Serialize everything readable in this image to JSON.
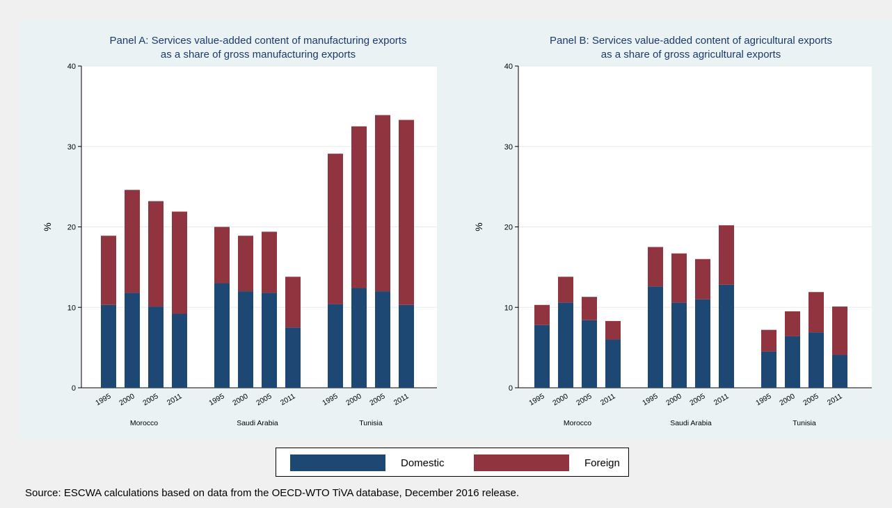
{
  "colors": {
    "domestic": "#1c4873",
    "foreign": "#903540",
    "panel_bg": "#eaf2f3",
    "plot_bg": "#ffffff",
    "title": "#1a3a6c"
  },
  "legend": {
    "items": [
      "Domestic",
      "Foreign"
    ]
  },
  "source": "Source: ESCWA calculations based on data from the OECD-WTO TiVA database, December 2016 release.",
  "chart_data": [
    {
      "type": "bar",
      "stacked": true,
      "title": [
        "Panel A: Services value-added content of manufacturing exports",
        "as a share of gross manufacturing exports"
      ],
      "ylabel": "%",
      "ylim": [
        0,
        40
      ],
      "yticks": [
        0,
        10,
        20,
        30,
        40
      ],
      "grid": true,
      "groups": [
        {
          "name": "Morocco",
          "categories": [
            "1995",
            "2000",
            "2005",
            "2011"
          ],
          "domestic": [
            10.3,
            11.8,
            10.1,
            9.2
          ],
          "foreign": [
            8.6,
            12.8,
            13.1,
            12.7
          ]
        },
        {
          "name": "Saudi Arabia",
          "categories": [
            "1995",
            "2000",
            "2005",
            "2011"
          ],
          "domestic": [
            13.0,
            12.0,
            11.8,
            7.5
          ],
          "foreign": [
            7.0,
            6.9,
            7.6,
            6.3
          ]
        },
        {
          "name": "Tunisia",
          "categories": [
            "1995",
            "2000",
            "2005",
            "2011"
          ],
          "domestic": [
            10.4,
            12.4,
            12.0,
            10.3
          ],
          "foreign": [
            18.7,
            20.1,
            21.9,
            23.0
          ]
        }
      ]
    },
    {
      "type": "bar",
      "stacked": true,
      "title": [
        "Panel B: Services value-added content of agricultural exports",
        "as a share of gross agricultural exports"
      ],
      "ylabel": "%",
      "ylim": [
        0,
        40
      ],
      "yticks": [
        0,
        10,
        20,
        30,
        40
      ],
      "grid": true,
      "groups": [
        {
          "name": "Morocco",
          "categories": [
            "1995",
            "2000",
            "2005",
            "2011"
          ],
          "domestic": [
            7.8,
            10.6,
            8.4,
            6.0
          ],
          "foreign": [
            2.5,
            3.2,
            2.9,
            2.3
          ]
        },
        {
          "name": "Saudi Arabia",
          "categories": [
            "1995",
            "2000",
            "2005",
            "2011"
          ],
          "domestic": [
            12.6,
            10.6,
            11.0,
            12.8
          ],
          "foreign": [
            4.9,
            6.1,
            5.0,
            7.4
          ]
        },
        {
          "name": "Tunisia",
          "categories": [
            "1995",
            "2000",
            "2005",
            "2011"
          ],
          "domestic": [
            4.5,
            6.4,
            6.9,
            4.1
          ],
          "foreign": [
            2.7,
            3.1,
            5.0,
            6.0
          ]
        }
      ]
    }
  ]
}
